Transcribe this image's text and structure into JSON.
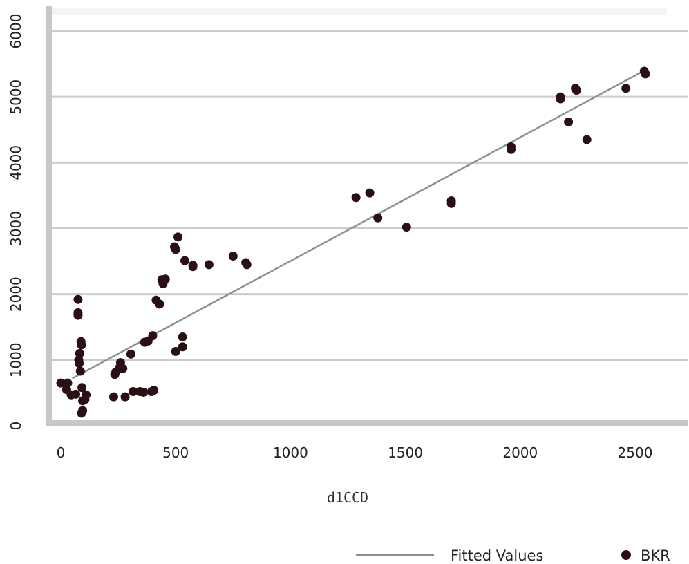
{
  "chart_data": {
    "type": "scatter",
    "xlabel": "d1CCD",
    "ylabel": "",
    "xlim": [
      -20,
      2640
    ],
    "ylim": [
      0,
      6150
    ],
    "x_ticks": [
      0,
      500,
      1000,
      1500,
      2000,
      2500
    ],
    "y_ticks": [
      0,
      1000,
      2000,
      3000,
      4000,
      5000,
      6000
    ],
    "grid": "horizontal",
    "legend_position": "bottom-right",
    "series": [
      {
        "name": "Fitted Values",
        "kind": "line",
        "color": "#8a9196",
        "points": [
          [
            50,
            720
          ],
          [
            2540,
            5400
          ]
        ]
      },
      {
        "name": "BKR",
        "kind": "scatter",
        "color": "#2a0f14",
        "points": [
          [
            0,
            650
          ],
          [
            25,
            550
          ],
          [
            30,
            650
          ],
          [
            45,
            470
          ],
          [
            65,
            480
          ],
          [
            75,
            1920
          ],
          [
            75,
            1720
          ],
          [
            75,
            1680
          ],
          [
            78,
            1000
          ],
          [
            80,
            950
          ],
          [
            82,
            1100
          ],
          [
            85,
            830
          ],
          [
            88,
            1280
          ],
          [
            90,
            1230
          ],
          [
            92,
            580
          ],
          [
            95,
            230
          ],
          [
            90,
            190
          ],
          [
            95,
            380
          ],
          [
            105,
            400
          ],
          [
            110,
            470
          ],
          [
            230,
            440
          ],
          [
            235,
            780
          ],
          [
            240,
            820
          ],
          [
            255,
            880
          ],
          [
            260,
            960
          ],
          [
            270,
            870
          ],
          [
            280,
            440
          ],
          [
            305,
            1090
          ],
          [
            315,
            520
          ],
          [
            345,
            520
          ],
          [
            360,
            510
          ],
          [
            365,
            1270
          ],
          [
            380,
            1290
          ],
          [
            395,
            520
          ],
          [
            400,
            1370
          ],
          [
            405,
            540
          ],
          [
            415,
            1910
          ],
          [
            430,
            1850
          ],
          [
            440,
            2220
          ],
          [
            445,
            2160
          ],
          [
            455,
            2230
          ],
          [
            495,
            2720
          ],
          [
            500,
            2680
          ],
          [
            510,
            2870
          ],
          [
            500,
            1130
          ],
          [
            530,
            1350
          ],
          [
            530,
            1200
          ],
          [
            540,
            2510
          ],
          [
            575,
            2420
          ],
          [
            575,
            2440
          ],
          [
            645,
            2450
          ],
          [
            750,
            2580
          ],
          [
            805,
            2480
          ],
          [
            810,
            2450
          ],
          [
            1285,
            3470
          ],
          [
            1345,
            3540
          ],
          [
            1380,
            3160
          ],
          [
            1505,
            3020
          ],
          [
            1700,
            3420
          ],
          [
            1700,
            3380
          ],
          [
            1960,
            4240
          ],
          [
            1960,
            4200
          ],
          [
            2175,
            5000
          ],
          [
            2175,
            4970
          ],
          [
            2210,
            4620
          ],
          [
            2240,
            5130
          ],
          [
            2245,
            5100
          ],
          [
            2290,
            4350
          ],
          [
            2460,
            5130
          ],
          [
            2540,
            5390
          ],
          [
            2545,
            5350
          ]
        ]
      }
    ]
  }
}
